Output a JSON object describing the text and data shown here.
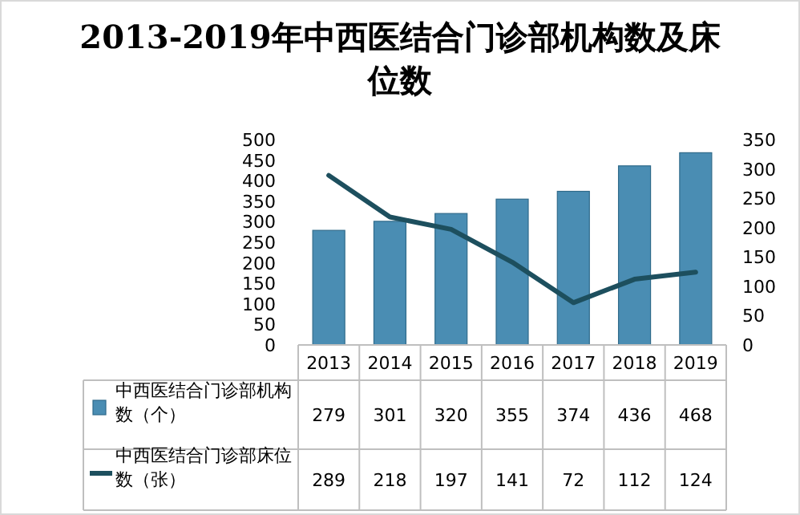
{
  "chart_data": {
    "type": "bar",
    "title": "2013-2019年中西医结合门诊部机构数及床位数",
    "categories": [
      "2013",
      "2014",
      "2015",
      "2016",
      "2017",
      "2018",
      "2019"
    ],
    "series": [
      {
        "name": "中西医结合门诊部机构数（个）",
        "color": "#4a8db3",
        "values": [
          279,
          301,
          320,
          355,
          374,
          436,
          468
        ]
      },
      {
        "name": "中西医结合门诊部床位数（张）",
        "type": "line",
        "axis": "y2",
        "color": "#1d4f5e",
        "values": [
          289,
          218,
          197,
          141,
          72,
          112,
          124
        ]
      }
    ],
    "ylim": [
      0,
      500
    ],
    "yticks": [
      0,
      50,
      100,
      150,
      200,
      250,
      300,
      350,
      400,
      450,
      500
    ],
    "y2lim": [
      0,
      350
    ],
    "y2ticks": [
      0,
      50,
      100,
      150,
      200,
      250,
      300,
      350
    ],
    "data_labels": true,
    "legend": "bottom",
    "grid": false,
    "marker": "none",
    "line_style": "solid"
  }
}
